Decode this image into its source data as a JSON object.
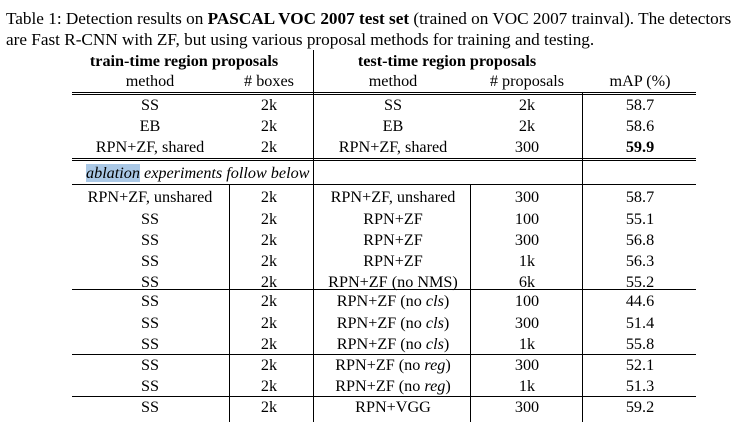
{
  "caption": {
    "prefix": "Table 1:  Detection results on ",
    "bold": "PASCAL VOC 2007 test set",
    "suffix": " (trained on VOC 2007 trainval).  The detectors are Fast R-CNN with ZF, but using various proposal methods for training and testing."
  },
  "groups": {
    "train": "train-time region proposals",
    "test": "test-time region proposals"
  },
  "columns": [
    "method",
    "# boxes",
    "method",
    "# proposals",
    "mAP (%)"
  ],
  "ablation": {
    "highlight": "ablation",
    "rest": " experiments follow below"
  },
  "rows": [
    {
      "train_method": "SS",
      "boxes": "2k",
      "test_method": "SS",
      "proposals": "2k",
      "map": "58.7"
    },
    {
      "train_method": "EB",
      "boxes": "2k",
      "test_method": "EB",
      "proposals": "2k",
      "map": "58.6"
    },
    {
      "train_method": "RPN+ZF, shared",
      "boxes": "2k",
      "test_method": "RPN+ZF, shared",
      "proposals": "300",
      "map": "59.9",
      "map_bold": true
    },
    {
      "train_method": "RPN+ZF, unshared",
      "boxes": "2k",
      "test_method": "RPN+ZF, unshared",
      "proposals": "300",
      "map": "58.7"
    },
    {
      "train_method": "SS",
      "boxes": "2k",
      "test_method": "RPN+ZF",
      "proposals": "100",
      "map": "55.1"
    },
    {
      "train_method": "SS",
      "boxes": "2k",
      "test_method": "RPN+ZF",
      "proposals": "300",
      "map": "56.8"
    },
    {
      "train_method": "SS",
      "boxes": "2k",
      "test_method": "RPN+ZF",
      "proposals": "1k",
      "map": "56.3"
    },
    {
      "train_method": "SS",
      "boxes": "2k",
      "test_method": "RPN+ZF (no NMS)",
      "proposals": "6k",
      "map": "55.2"
    },
    {
      "train_method": "SS",
      "boxes": "2k",
      "test_method": [
        "RPN+ZF (no ",
        "cls",
        ")"
      ],
      "proposals": "100",
      "map": "44.6"
    },
    {
      "train_method": "SS",
      "boxes": "2k",
      "test_method": [
        "RPN+ZF (no ",
        "cls",
        ")"
      ],
      "proposals": "300",
      "map": "51.4"
    },
    {
      "train_method": "SS",
      "boxes": "2k",
      "test_method": [
        "RPN+ZF (no ",
        "cls",
        ")"
      ],
      "proposals": "1k",
      "map": "55.8"
    },
    {
      "train_method": "SS",
      "boxes": "2k",
      "test_method": [
        "RPN+ZF (no ",
        "reg",
        ")"
      ],
      "proposals": "300",
      "map": "52.1"
    },
    {
      "train_method": "SS",
      "boxes": "2k",
      "test_method": [
        "RPN+ZF (no ",
        "reg",
        ")"
      ],
      "proposals": "1k",
      "map": "51.3"
    },
    {
      "train_method": "SS",
      "boxes": "2k",
      "test_method": "RPN+VGG",
      "proposals": "300",
      "map": "59.2"
    }
  ]
}
